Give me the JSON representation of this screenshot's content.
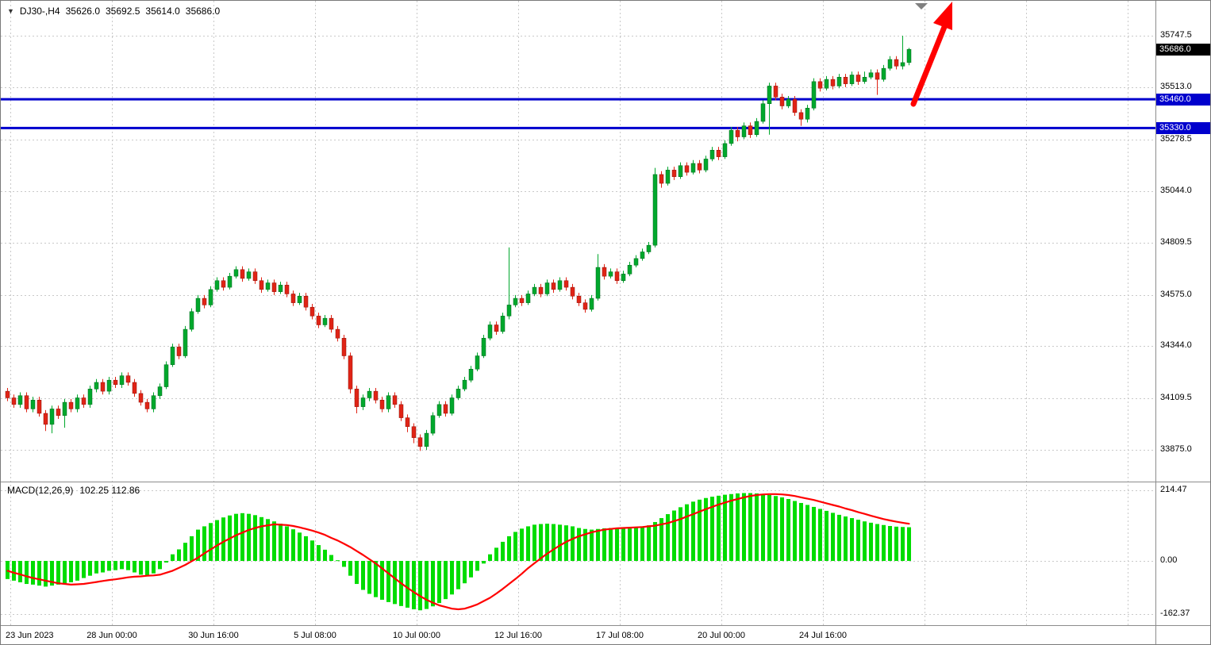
{
  "header": {
    "dropdown_marker": "▼",
    "symbol_period": "DJ30-,H4",
    "open": "35626.0",
    "high": "35692.5",
    "low": "35614.0",
    "close": "35686.0"
  },
  "price_axis": {
    "ticks": [
      "35747.5",
      "35513.0",
      "35278.5",
      "35044.0",
      "34809.5",
      "34575.0",
      "34344.0",
      "34109.5",
      "33875.0"
    ],
    "current_tag": {
      "value": "35686.0",
      "bg": "#000000",
      "fg": "#FFFFFF"
    },
    "level_tags": [
      {
        "value": "35460.0",
        "bg": "#0000CD",
        "fg": "#FFFFFF"
      },
      {
        "value": "35330.0",
        "bg": "#0000CD",
        "fg": "#FFFFFF"
      }
    ]
  },
  "time_axis": {
    "labels": [
      "23 Jun 2023",
      "28 Jun 00:00",
      "30 Jun 16:00",
      "5 Jul 08:00",
      "10 Jul 00:00",
      "12 Jul 16:00",
      "17 Jul 08:00",
      "20 Jul 00:00",
      "24 Jul 16:00"
    ]
  },
  "indicator": {
    "name": "MACD(12,26,9)",
    "values": "102.25 112.86",
    "ticks": [
      "214.47",
      "0.00",
      "-162.37"
    ]
  },
  "annotations": {
    "trend_arrow_color": "#FF0000",
    "shift_marker": "▼",
    "shift_marker_color": "#808080"
  },
  "chart_data": {
    "type": "candlestick",
    "symbol": "DJ30-",
    "timeframe": "H4",
    "ylim": [
      33830,
      35790
    ],
    "grid": true,
    "horizontal_lines": [
      35460.0,
      35330.0
    ],
    "hline_color": "#0000CD",
    "up_color": "#00A82D",
    "down_color": "#E02416",
    "price_ticks": [
      35747.5,
      35513.0,
      35278.5,
      35044.0,
      34809.5,
      34575.0,
      34344.0,
      34109.5,
      33875.0
    ],
    "candles": [
      [
        34140,
        34155,
        34095,
        34110
      ],
      [
        34110,
        34125,
        34065,
        34080
      ],
      [
        34080,
        34135,
        34065,
        34120
      ],
      [
        34120,
        34135,
        34045,
        34060
      ],
      [
        34060,
        34115,
        34045,
        34100
      ],
      [
        34100,
        34115,
        34025,
        34040
      ],
      [
        34040,
        34055,
        33960,
        33990
      ],
      [
        33990,
        34075,
        33950,
        34060
      ],
      [
        34060,
        34075,
        34015,
        34030
      ],
      [
        34030,
        34105,
        33975,
        34090
      ],
      [
        34090,
        34105,
        34045,
        34060
      ],
      [
        34060,
        34125,
        34045,
        34110
      ],
      [
        34110,
        34125,
        34065,
        34080
      ],
      [
        34080,
        34165,
        34065,
        34150
      ],
      [
        34150,
        34195,
        34135,
        34180
      ],
      [
        34180,
        34195,
        34125,
        34140
      ],
      [
        34140,
        34205,
        34125,
        34190
      ],
      [
        34190,
        34205,
        34155,
        34170
      ],
      [
        34170,
        34225,
        34155,
        34210
      ],
      [
        34210,
        34225,
        34165,
        34180
      ],
      [
        34180,
        34195,
        34115,
        34130
      ],
      [
        34130,
        34145,
        34075,
        34090
      ],
      [
        34090,
        34105,
        34045,
        34060
      ],
      [
        34060,
        34135,
        34045,
        34120
      ],
      [
        34120,
        34175,
        34105,
        34160
      ],
      [
        34160,
        34275,
        34150,
        34260
      ],
      [
        34260,
        34355,
        34250,
        34340
      ],
      [
        34340,
        34355,
        34285,
        34300
      ],
      [
        34300,
        34435,
        34290,
        34420
      ],
      [
        34420,
        34515,
        34410,
        34500
      ],
      [
        34500,
        34575,
        34490,
        34560
      ],
      [
        34560,
        34575,
        34515,
        34530
      ],
      [
        34530,
        34615,
        34520,
        34600
      ],
      [
        34600,
        34655,
        34590,
        34640
      ],
      [
        34640,
        34655,
        34595,
        34610
      ],
      [
        34610,
        34675,
        34600,
        34660
      ],
      [
        34660,
        34705,
        34650,
        34690
      ],
      [
        34690,
        34705,
        34635,
        34650
      ],
      [
        34650,
        34695,
        34640,
        34680
      ],
      [
        34680,
        34695,
        34625,
        34640
      ],
      [
        34640,
        34655,
        34585,
        34600
      ],
      [
        34600,
        34645,
        34590,
        34630
      ],
      [
        34630,
        34645,
        34575,
        34590
      ],
      [
        34590,
        34635,
        34580,
        34620
      ],
      [
        34620,
        34635,
        34565,
        34580
      ],
      [
        34580,
        34595,
        34525,
        34540
      ],
      [
        34540,
        34585,
        34530,
        34570
      ],
      [
        34570,
        34585,
        34505,
        34520
      ],
      [
        34520,
        34535,
        34465,
        34480
      ],
      [
        34480,
        34495,
        34425,
        34440
      ],
      [
        34440,
        34485,
        34430,
        34470
      ],
      [
        34470,
        34485,
        34405,
        34420
      ],
      [
        34420,
        34435,
        34365,
        34380
      ],
      [
        34380,
        34395,
        34285,
        34300
      ],
      [
        34300,
        34315,
        34130,
        34150
      ],
      [
        34150,
        34165,
        34040,
        34070
      ],
      [
        34070,
        34125,
        34055,
        34110
      ],
      [
        34110,
        34155,
        34095,
        34140
      ],
      [
        34140,
        34155,
        34085,
        34100
      ],
      [
        34100,
        34115,
        34045,
        34060
      ],
      [
        34060,
        34135,
        34045,
        34120
      ],
      [
        34120,
        34135,
        34065,
        34080
      ],
      [
        34080,
        34095,
        34005,
        34020
      ],
      [
        34020,
        34035,
        33955,
        33980
      ],
      [
        33980,
        33995,
        33905,
        33930
      ],
      [
        33930,
        33945,
        33870,
        33890
      ],
      [
        33890,
        33965,
        33875,
        33950
      ],
      [
        33950,
        34045,
        33940,
        34030
      ],
      [
        34030,
        34095,
        34020,
        34080
      ],
      [
        34080,
        34095,
        34025,
        34040
      ],
      [
        34040,
        34125,
        34030,
        34110
      ],
      [
        34110,
        34165,
        34100,
        34150
      ],
      [
        34150,
        34205,
        34140,
        34190
      ],
      [
        34190,
        34255,
        34180,
        34240
      ],
      [
        34240,
        34315,
        34230,
        34300
      ],
      [
        34300,
        34395,
        34290,
        34380
      ],
      [
        34380,
        34455,
        34370,
        34440
      ],
      [
        34440,
        34455,
        34395,
        34410
      ],
      [
        34410,
        34495,
        34400,
        34480
      ],
      [
        34480,
        34790,
        34465,
        34530
      ],
      [
        34530,
        34575,
        34520,
        34560
      ],
      [
        34560,
        34575,
        34525,
        34540
      ],
      [
        34540,
        34595,
        34530,
        34580
      ],
      [
        34580,
        34625,
        34570,
        34610
      ],
      [
        34610,
        34625,
        34565,
        34580
      ],
      [
        34580,
        34645,
        34570,
        34630
      ],
      [
        34630,
        34645,
        34585,
        34600
      ],
      [
        34600,
        34655,
        34590,
        34640
      ],
      [
        34640,
        34655,
        34595,
        34610
      ],
      [
        34610,
        34625,
        34555,
        34570
      ],
      [
        34570,
        34585,
        34525,
        34540
      ],
      [
        34540,
        34555,
        34495,
        34510
      ],
      [
        34510,
        34575,
        34500,
        34560
      ],
      [
        34560,
        34760,
        34550,
        34700
      ],
      [
        34700,
        34715,
        34645,
        34660
      ],
      [
        34660,
        34695,
        34650,
        34680
      ],
      [
        34680,
        34695,
        34625,
        34640
      ],
      [
        34640,
        34685,
        34630,
        34670
      ],
      [
        34670,
        34725,
        34660,
        34710
      ],
      [
        34710,
        34755,
        34700,
        34740
      ],
      [
        34740,
        34785,
        34730,
        34770
      ],
      [
        34770,
        34815,
        34760,
        34800
      ],
      [
        34800,
        35150,
        34790,
        35120
      ],
      [
        35120,
        35135,
        35060,
        35080
      ],
      [
        35080,
        35155,
        35070,
        35140
      ],
      [
        35140,
        35155,
        35095,
        35110
      ],
      [
        35110,
        35175,
        35100,
        35160
      ],
      [
        35160,
        35175,
        35115,
        35130
      ],
      [
        35130,
        35185,
        35120,
        35170
      ],
      [
        35170,
        35185,
        35125,
        35140
      ],
      [
        35140,
        35205,
        35130,
        35190
      ],
      [
        35190,
        35245,
        35180,
        35230
      ],
      [
        35230,
        35245,
        35185,
        35200
      ],
      [
        35200,
        35275,
        35190,
        35260
      ],
      [
        35260,
        35335,
        35250,
        35320
      ],
      [
        35320,
        35335,
        35270,
        35290
      ],
      [
        35290,
        35355,
        35280,
        35340
      ],
      [
        35340,
        35355,
        35285,
        35300
      ],
      [
        35300,
        35375,
        35290,
        35360
      ],
      [
        35360,
        35455,
        35350,
        35440
      ],
      [
        35440,
        35535,
        35300,
        35520
      ],
      [
        35520,
        35535,
        35455,
        35470
      ],
      [
        35470,
        35485,
        35415,
        35430
      ],
      [
        35430,
        35475,
        35420,
        35460
      ],
      [
        35460,
        35475,
        35385,
        35400
      ],
      [
        35400,
        35415,
        35340,
        35370
      ],
      [
        35370,
        35435,
        35355,
        35420
      ],
      [
        35420,
        35555,
        35410,
        35540
      ],
      [
        35540,
        35555,
        35495,
        35510
      ],
      [
        35510,
        35565,
        35500,
        35550
      ],
      [
        35550,
        35565,
        35505,
        35520
      ],
      [
        35520,
        35575,
        35510,
        35560
      ],
      [
        35560,
        35575,
        35515,
        35530
      ],
      [
        35530,
        35585,
        35520,
        35570
      ],
      [
        35570,
        35585,
        35525,
        35540
      ],
      [
        35540,
        35585,
        35530,
        35560
      ],
      [
        35560,
        35595,
        35550,
        35580
      ],
      [
        35580,
        35595,
        35480,
        35550
      ],
      [
        35550,
        35615,
        35540,
        35600
      ],
      [
        35600,
        35655,
        35590,
        35640
      ],
      [
        35640,
        35655,
        35595,
        35610
      ],
      [
        35610,
        35747.5,
        35595,
        35626
      ],
      [
        35626,
        35692.5,
        35614,
        35686
      ]
    ],
    "macd": {
      "params": [
        12,
        26,
        9
      ],
      "current_macd": 102.25,
      "current_signal": 112.86,
      "axis_ticks": [
        214.47,
        0.0,
        -162.37
      ],
      "bar_color": "#00DC00",
      "signal_color": "#FF0000",
      "histogram": [
        -55,
        -60,
        -65,
        -70,
        -72,
        -75,
        -78,
        -75,
        -72,
        -68,
        -65,
        -60,
        -52,
        -45,
        -38,
        -35,
        -30,
        -28,
        -25,
        -28,
        -35,
        -42,
        -45,
        -38,
        -25,
        -5,
        20,
        35,
        55,
        75,
        95,
        105,
        115,
        124,
        132,
        138,
        143,
        145,
        143,
        139,
        133,
        127,
        120,
        113,
        105,
        96,
        86,
        75,
        62,
        48,
        34,
        18,
        2,
        -18,
        -45,
        -70,
        -88,
        -100,
        -110,
        -118,
        -125,
        -131,
        -137,
        -142,
        -147,
        -150,
        -146,
        -138,
        -128,
        -116,
        -102,
        -86,
        -68,
        -50,
        -30,
        -8,
        20,
        40,
        58,
        75,
        88,
        98,
        105,
        110,
        112,
        113,
        112,
        110,
        108,
        105,
        100,
        97,
        95,
        97,
        99,
        100,
        99,
        98,
        100,
        102,
        105,
        108,
        118,
        130,
        142,
        153,
        163,
        172,
        180,
        186,
        191,
        195,
        198,
        201,
        203,
        205,
        206,
        206,
        205,
        203,
        200,
        197,
        193,
        188,
        182,
        176,
        170,
        164,
        158,
        152,
        146,
        140,
        135,
        130,
        125,
        120,
        116,
        112,
        109,
        106,
        104,
        103,
        102.25
      ],
      "signal": [
        -30,
        -36,
        -41,
        -47,
        -52,
        -56,
        -60,
        -64,
        -68,
        -70,
        -72,
        -71,
        -70,
        -67,
        -64,
        -61,
        -58,
        -56,
        -53,
        -50,
        -48,
        -47,
        -45,
        -44,
        -42,
        -36,
        -30,
        -21,
        -12,
        -1,
        10,
        23,
        35,
        47,
        58,
        68,
        78,
        86,
        94,
        100,
        105,
        108,
        111,
        110,
        109,
        106,
        102,
        97,
        92,
        86,
        79,
        70,
        62,
        52,
        42,
        30,
        18,
        5,
        -8,
        -23,
        -38,
        -53,
        -68,
        -82,
        -95,
        -107,
        -118,
        -127,
        -135,
        -140,
        -145,
        -147,
        -145,
        -139,
        -132,
        -122,
        -112,
        -99,
        -85,
        -70,
        -55,
        -39,
        -22,
        -7,
        8,
        22,
        35,
        47,
        58,
        67,
        75,
        81,
        87,
        91,
        95,
        97,
        99,
        100,
        101,
        102,
        103,
        105,
        107,
        111,
        115,
        121,
        127,
        135,
        142,
        150,
        157,
        164,
        171,
        177,
        183,
        188,
        193,
        197,
        200,
        202,
        203,
        203,
        202,
        200,
        197,
        193,
        189,
        185,
        180,
        175,
        170,
        165,
        159,
        154,
        148,
        143,
        137,
        132,
        127,
        123,
        119,
        116,
        112.86
      ]
    }
  }
}
